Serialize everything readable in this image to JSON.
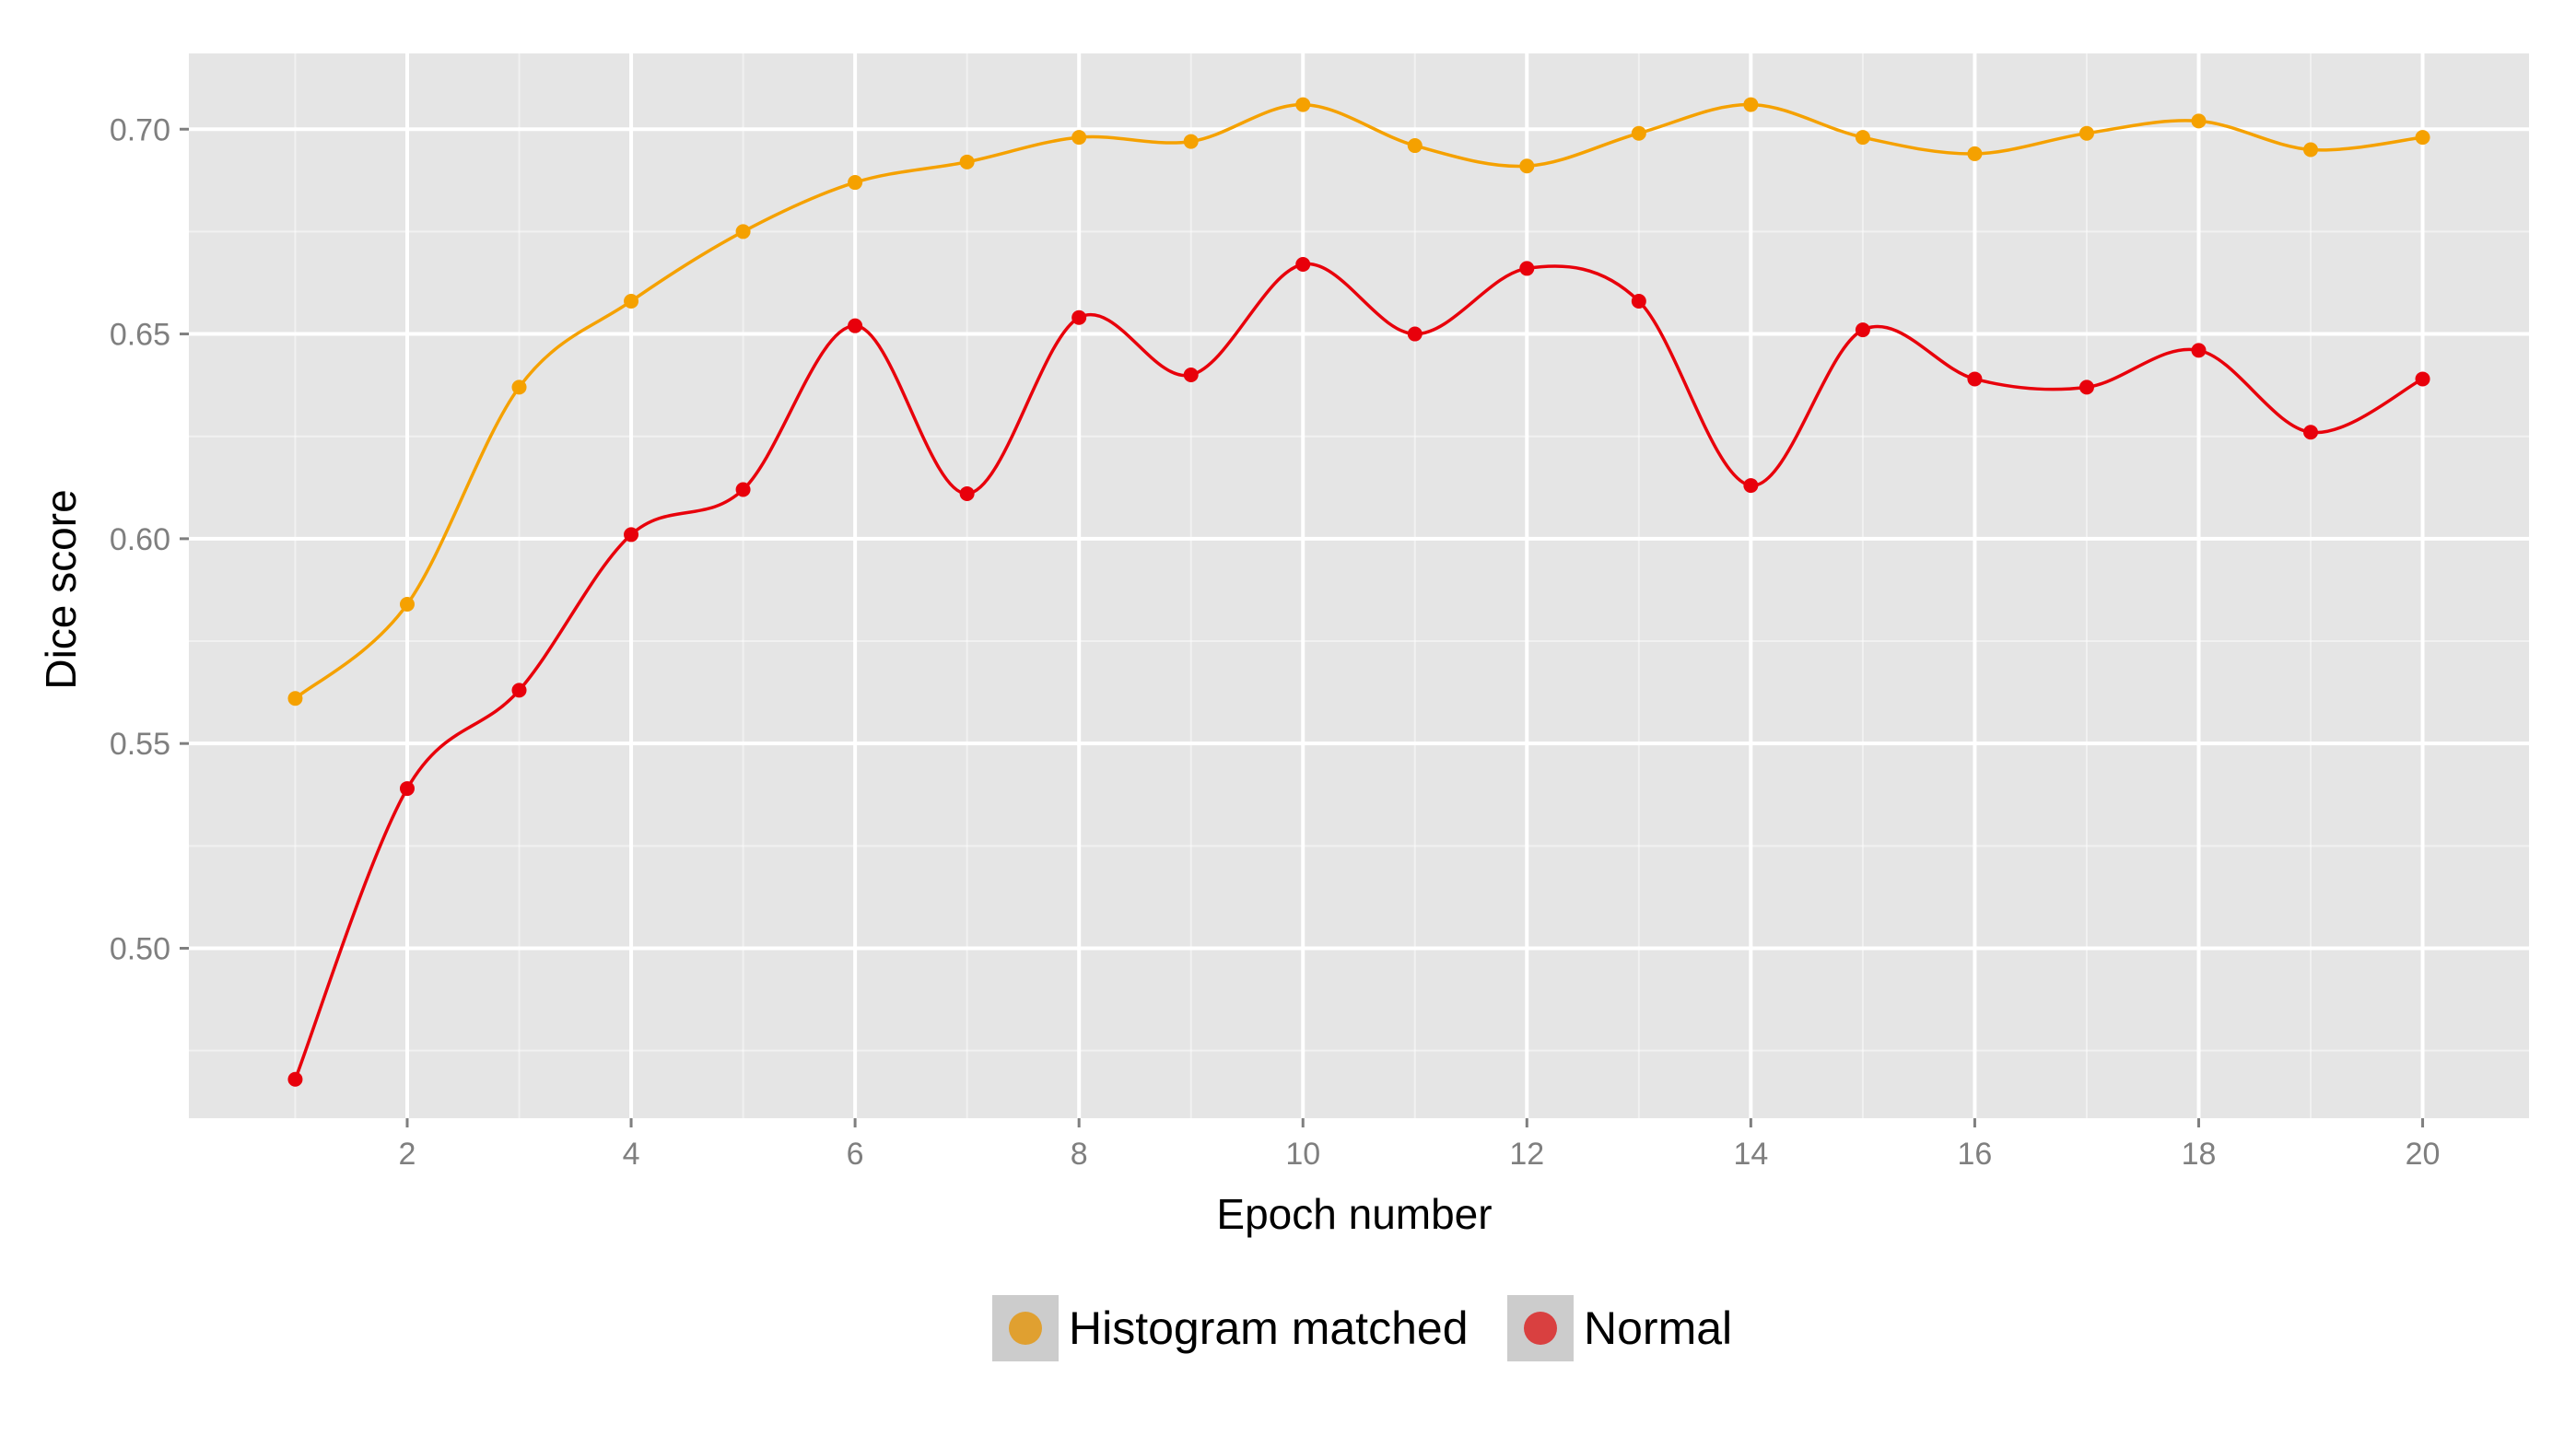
{
  "chart_data": {
    "type": "line",
    "title": "",
    "xlabel": "Epoch number",
    "ylabel": "Dice score",
    "xlim": [
      0.05,
      20.95
    ],
    "ylim": [
      0.4585,
      0.7185
    ],
    "x_ticks": [
      2,
      4,
      6,
      8,
      10,
      12,
      14,
      16,
      18,
      20
    ],
    "x_tick_labels": [
      "2",
      "4",
      "6",
      "8",
      "10",
      "12",
      "14",
      "16",
      "18",
      "20"
    ],
    "y_ticks": [
      0.5,
      0.55,
      0.6,
      0.65,
      0.7
    ],
    "y_tick_labels": [
      "0.50",
      "0.55",
      "0.60",
      "0.65",
      "0.70"
    ],
    "grid": true,
    "smoothed_lines": true,
    "background": "#e5e5e5",
    "gridline_color": "#ffffff",
    "legend_position": "bottom",
    "x": [
      1,
      2,
      3,
      4,
      5,
      6,
      7,
      8,
      9,
      10,
      11,
      12,
      13,
      14,
      15,
      16,
      17,
      18,
      19,
      20
    ],
    "series": [
      {
        "name": "Histogram matched",
        "color": "#f5a100",
        "legend_color": "#e0a030",
        "values": [
          0.561,
          0.584,
          0.637,
          0.658,
          0.675,
          0.687,
          0.692,
          0.698,
          0.697,
          0.706,
          0.696,
          0.691,
          0.699,
          0.706,
          0.698,
          0.694,
          0.699,
          0.702,
          0.695,
          0.698
        ]
      },
      {
        "name": "Normal",
        "color": "#e8000b",
        "legend_color": "#d94040",
        "values": [
          0.468,
          0.539,
          0.563,
          0.601,
          0.612,
          0.652,
          0.611,
          0.654,
          0.64,
          0.667,
          0.65,
          0.666,
          0.658,
          0.613,
          0.651,
          0.639,
          0.637,
          0.646,
          0.626,
          0.639
        ]
      }
    ]
  }
}
